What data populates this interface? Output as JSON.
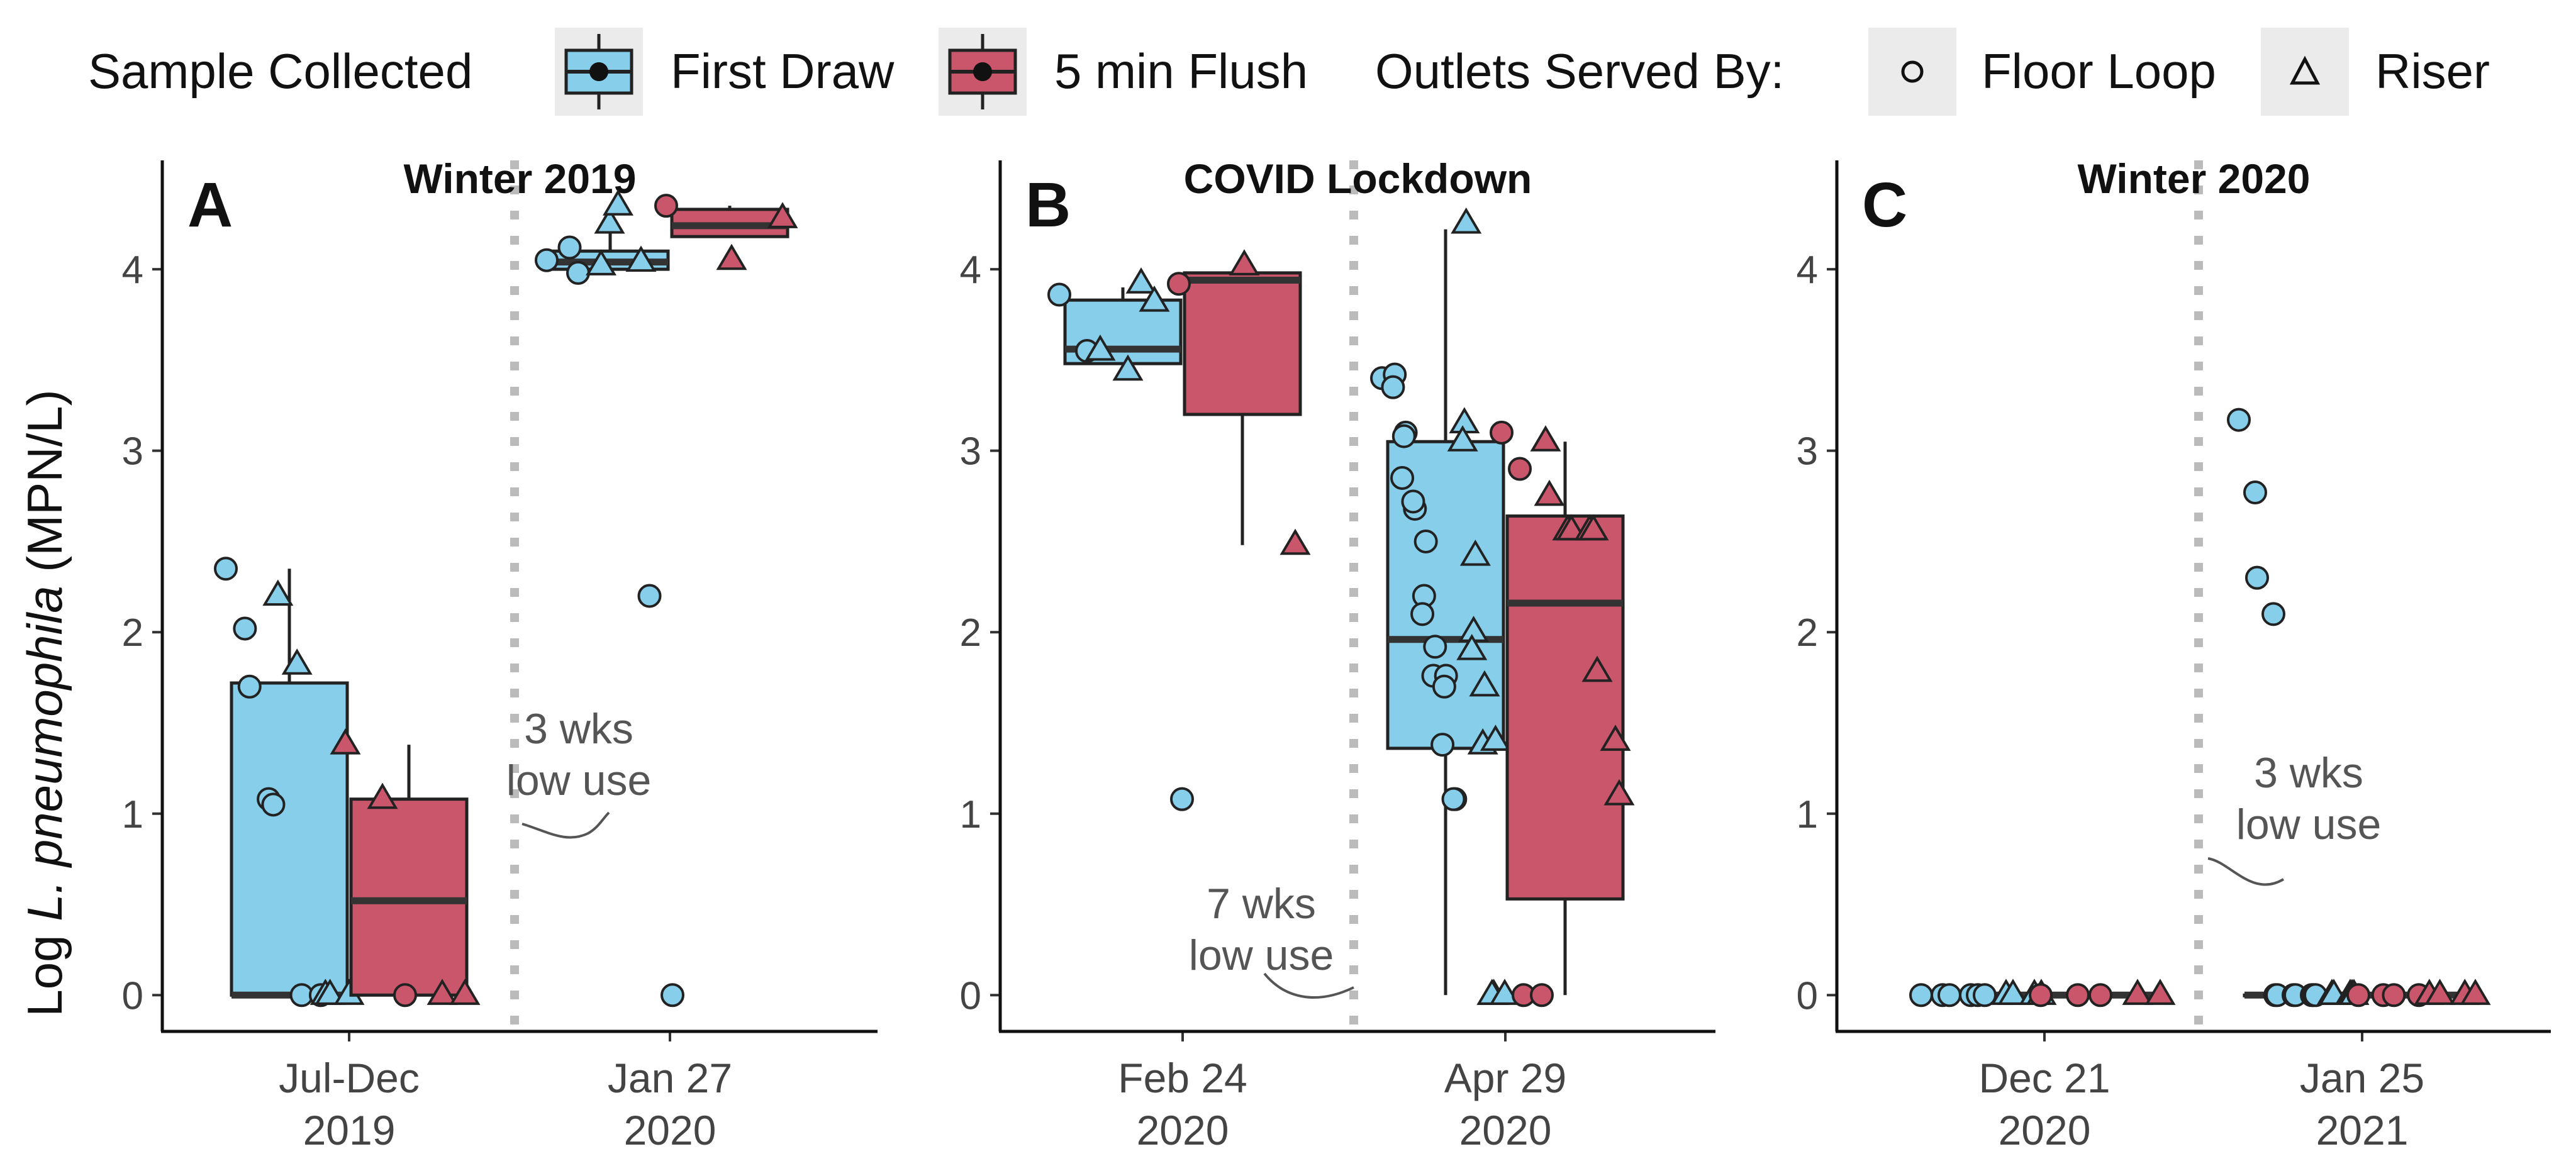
{
  "legend": {
    "sample_title": "Sample Collected",
    "first_draw": "First Draw",
    "flush": "5 min Flush",
    "outlets_title": "Outlets Served By:",
    "floor_loop": "Floor Loop",
    "riser": "Riser"
  },
  "colors": {
    "first_draw": "#87CEEB",
    "flush": "#C9566A",
    "outline": "#222222",
    "divider": "#BBBBBB",
    "annotation": "#555555"
  },
  "ylabel_prefix": "Log ",
  "ylabel_species": "L. pneumophila",
  "ylabel_units": " (MPN/L)",
  "chart_data": [
    {
      "type": "box",
      "panel": "A",
      "title": "Winter 2019",
      "ylim": [
        -0.2,
        4.6
      ],
      "yticks": [
        0,
        1,
        2,
        3,
        4
      ],
      "annotation": [
        "3 wks",
        "low use"
      ],
      "categories": [
        {
          "label": [
            "Jul-Dec",
            "2019"
          ],
          "boxes": [
            {
              "series": "First Draw",
              "q1": 0,
              "median": 0,
              "q3": 1.72,
              "whisker_low": 0,
              "whisker_high": 2.35,
              "points": [
                [
                  2.35,
                  "circle"
                ],
                [
                  2.02,
                  "circle"
                ],
                [
                  1.7,
                  "circle"
                ],
                [
                  1.08,
                  "circle"
                ],
                [
                  1.05,
                  "circle"
                ],
                [
                  2.2,
                  "triangle"
                ],
                [
                  1.82,
                  "triangle"
                ],
                [
                  0,
                  "circle"
                ],
                [
                  0,
                  "circle"
                ],
                [
                  0,
                  "triangle"
                ],
                [
                  0,
                  "triangle"
                ],
                [
                  0,
                  "triangle"
                ]
              ]
            },
            {
              "series": "5 min Flush",
              "q1": 0,
              "median": 0.52,
              "q3": 1.08,
              "whisker_low": 0,
              "whisker_high": 1.38,
              "points": [
                [
                  1.38,
                  "triangle"
                ],
                [
                  1.08,
                  "triangle"
                ],
                [
                  0,
                  "circle"
                ],
                [
                  0,
                  "triangle"
                ],
                [
                  0,
                  "triangle"
                ]
              ]
            }
          ]
        },
        {
          "label": [
            "Jan 27",
            "2020"
          ],
          "boxes": [
            {
              "series": "First Draw",
              "q1": 4.0,
              "median": 4.04,
              "q3": 4.1,
              "whisker_low": 4.0,
              "whisker_high": 4.22,
              "points": [
                [
                  4.05,
                  "circle"
                ],
                [
                  4.12,
                  "circle"
                ],
                [
                  3.98,
                  "circle"
                ],
                [
                  4.02,
                  "triangle"
                ],
                [
                  4.25,
                  "triangle"
                ],
                [
                  4.35,
                  "triangle"
                ],
                [
                  4.04,
                  "triangle"
                ],
                [
                  2.2,
                  "circle"
                ],
                [
                  0,
                  "circle"
                ]
              ]
            },
            {
              "series": "5 min Flush",
              "q1": 4.18,
              "median": 4.24,
              "q3": 4.33,
              "whisker_low": 4.18,
              "whisker_high": 4.35,
              "points": [
                [
                  4.35,
                  "circle"
                ],
                [
                  4.05,
                  "triangle"
                ],
                [
                  4.28,
                  "triangle"
                ]
              ]
            }
          ]
        }
      ]
    },
    {
      "type": "box",
      "panel": "B",
      "title": "COVID Lockdown",
      "ylim": [
        -0.2,
        4.6
      ],
      "yticks": [
        0,
        1,
        2,
        3,
        4
      ],
      "annotation": [
        "7 wks",
        "low use"
      ],
      "categories": [
        {
          "label": [
            "Feb 24",
            "2020"
          ],
          "boxes": [
            {
              "series": "First Draw",
              "q1": 3.48,
              "median": 3.56,
              "q3": 3.83,
              "whisker_low": 3.48,
              "whisker_high": 3.9,
              "points": [
                [
                  3.86,
                  "circle"
                ],
                [
                  3.55,
                  "circle"
                ],
                [
                  3.55,
                  "triangle"
                ],
                [
                  3.44,
                  "triangle"
                ],
                [
                  3.92,
                  "triangle"
                ],
                [
                  3.82,
                  "triangle"
                ],
                [
                  1.08,
                  "circle"
                ]
              ]
            },
            {
              "series": "5 min Flush",
              "q1": 3.2,
              "median": 3.94,
              "q3": 3.98,
              "whisker_low": 2.48,
              "whisker_high": 4.0,
              "points": [
                [
                  3.92,
                  "circle"
                ],
                [
                  4.02,
                  "triangle"
                ],
                [
                  2.48,
                  "triangle"
                ]
              ]
            }
          ]
        },
        {
          "label": [
            "Apr 29",
            "2020"
          ],
          "boxes": [
            {
              "series": "First Draw",
              "q1": 1.36,
              "median": 1.96,
              "q3": 3.05,
              "whisker_low": 0,
              "whisker_high": 4.22,
              "points": [
                [
                  3.4,
                  "circle"
                ],
                [
                  3.42,
                  "circle"
                ],
                [
                  3.35,
                  "circle"
                ],
                [
                  3.1,
                  "circle"
                ],
                [
                  3.08,
                  "circle"
                ],
                [
                  2.85,
                  "circle"
                ],
                [
                  2.68,
                  "circle"
                ],
                [
                  2.72,
                  "circle"
                ],
                [
                  2.5,
                  "circle"
                ],
                [
                  2.2,
                  "circle"
                ],
                [
                  2.1,
                  "circle"
                ],
                [
                  1.92,
                  "circle"
                ],
                [
                  1.76,
                  "circle"
                ],
                [
                  1.76,
                  "circle"
                ],
                [
                  1.7,
                  "circle"
                ],
                [
                  1.38,
                  "circle"
                ],
                [
                  1.08,
                  "circle"
                ],
                [
                  1.08,
                  "circle"
                ],
                [
                  4.25,
                  "triangle"
                ],
                [
                  3.15,
                  "triangle"
                ],
                [
                  3.05,
                  "triangle"
                ],
                [
                  2.42,
                  "triangle"
                ],
                [
                  2.0,
                  "triangle"
                ],
                [
                  1.9,
                  "triangle"
                ],
                [
                  1.7,
                  "triangle"
                ],
                [
                  1.38,
                  "triangle"
                ],
                [
                  1.4,
                  "triangle"
                ],
                [
                  0,
                  "triangle"
                ],
                [
                  0,
                  "triangle"
                ],
                [
                  0,
                  "triangle"
                ]
              ]
            },
            {
              "series": "5 min Flush",
              "q1": 0.53,
              "median": 2.16,
              "q3": 2.64,
              "whisker_low": 0,
              "whisker_high": 3.05,
              "points": [
                [
                  3.1,
                  "circle"
                ],
                [
                  2.9,
                  "circle"
                ],
                [
                  0,
                  "circle"
                ],
                [
                  0,
                  "circle"
                ],
                [
                  3.05,
                  "triangle"
                ],
                [
                  2.75,
                  "triangle"
                ],
                [
                  2.56,
                  "triangle"
                ],
                [
                  2.56,
                  "triangle"
                ],
                [
                  2.56,
                  "triangle"
                ],
                [
                  2.56,
                  "triangle"
                ],
                [
                  1.78,
                  "triangle"
                ],
                [
                  1.4,
                  "triangle"
                ],
                [
                  1.1,
                  "triangle"
                ]
              ]
            }
          ]
        }
      ]
    },
    {
      "type": "box",
      "panel": "C",
      "title": "Winter 2020",
      "ylim": [
        -0.2,
        4.6
      ],
      "yticks": [
        0,
        1,
        2,
        3,
        4
      ],
      "annotation": [
        "3 wks",
        "low use"
      ],
      "categories": [
        {
          "label": [
            "Dec 21",
            "2020"
          ],
          "boxes": [
            {
              "series": "First Draw",
              "q1": 0,
              "median": 0,
              "q3": 0,
              "whisker_low": 0,
              "whisker_high": 0,
              "points": [
                [
                  0,
                  "circle"
                ],
                [
                  0,
                  "circle"
                ],
                [
                  0,
                  "circle"
                ],
                [
                  0,
                  "circle"
                ],
                [
                  0,
                  "circle"
                ],
                [
                  0,
                  "circle"
                ],
                [
                  0,
                  "triangle"
                ],
                [
                  0,
                  "triangle"
                ],
                [
                  0,
                  "triangle"
                ],
                [
                  0,
                  "triangle"
                ]
              ]
            },
            {
              "series": "5 min Flush",
              "q1": 0,
              "median": 0,
              "q3": 0,
              "whisker_low": 0,
              "whisker_high": 0,
              "points": [
                [
                  0,
                  "circle"
                ],
                [
                  0,
                  "circle"
                ],
                [
                  0,
                  "circle"
                ],
                [
                  0,
                  "triangle"
                ],
                [
                  0,
                  "triangle"
                ]
              ]
            }
          ]
        },
        {
          "label": [
            "Jan 25",
            "2021"
          ],
          "boxes": [
            {
              "series": "First Draw",
              "q1": 0,
              "median": 0,
              "q3": 0,
              "whisker_low": 0,
              "whisker_high": 0,
              "points": [
                [
                  3.17,
                  "circle"
                ],
                [
                  2.77,
                  "circle"
                ],
                [
                  2.3,
                  "circle"
                ],
                [
                  2.1,
                  "circle"
                ],
                [
                  0,
                  "circle"
                ],
                [
                  0,
                  "circle"
                ],
                [
                  0,
                  "circle"
                ],
                [
                  0,
                  "circle"
                ],
                [
                  0,
                  "circle"
                ],
                [
                  0,
                  "circle"
                ],
                [
                  0,
                  "circle"
                ],
                [
                  0,
                  "triangle"
                ],
                [
                  0,
                  "triangle"
                ],
                [
                  0,
                  "triangle"
                ],
                [
                  0,
                  "triangle"
                ],
                [
                  0,
                  "triangle"
                ]
              ]
            },
            {
              "series": "5 min Flush",
              "q1": 0,
              "median": 0,
              "q3": 0,
              "whisker_low": 0,
              "whisker_high": 0,
              "points": [
                [
                  0,
                  "circle"
                ],
                [
                  0,
                  "circle"
                ],
                [
                  0,
                  "circle"
                ],
                [
                  0,
                  "circle"
                ],
                [
                  0,
                  "triangle"
                ],
                [
                  0,
                  "triangle"
                ],
                [
                  0,
                  "triangle"
                ],
                [
                  0,
                  "triangle"
                ]
              ]
            }
          ]
        }
      ]
    }
  ]
}
